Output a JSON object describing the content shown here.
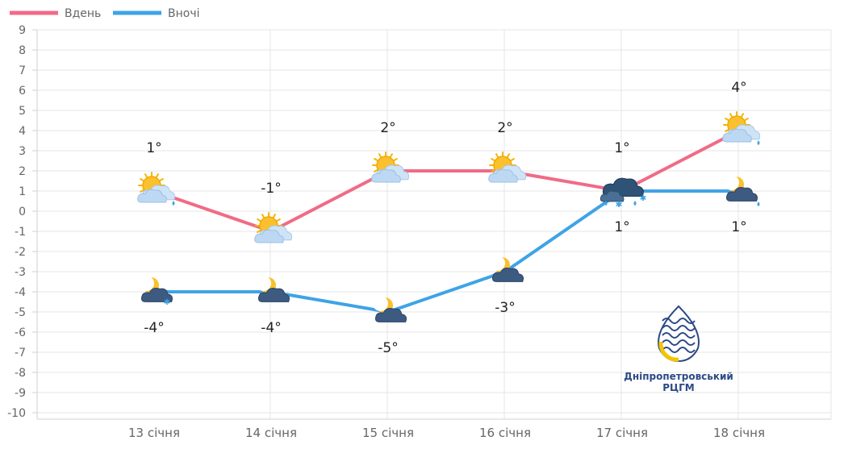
{
  "chart_data": {
    "type": "line",
    "categories": [
      "13 січня",
      "14 січня",
      "15 січня",
      "16 січня",
      "17 січня",
      "18 січня"
    ],
    "series": [
      {
        "name": "Вдень",
        "color": "#f06b86",
        "values": [
          1,
          -1,
          2,
          2,
          1,
          4
        ],
        "labels": [
          "1°",
          "-1°",
          "2°",
          "2°",
          "1°",
          "4°"
        ],
        "icons": [
          "sun-cloud-rain-icon",
          "sun-cloud-icon",
          "sun-cloud-icon",
          "sun-cloud-icon",
          "dark-cloud-rain-snow-icon",
          "sun-cloud-rain-icon"
        ]
      },
      {
        "name": "Вночі",
        "color": "#3fa3e6",
        "values": [
          -4,
          -4,
          -5,
          -3,
          1,
          1
        ],
        "labels": [
          "-4°",
          "-4°",
          "-5°",
          "-3°",
          "1°",
          "1°"
        ],
        "icons": [
          "moon-cloud-snow-icon",
          "moon-cloud-icon",
          "moon-cloud-icon",
          "moon-cloud-icon",
          "dark-cloud-rain-snow-icon",
          "moon-cloud-rain-icon"
        ]
      }
    ],
    "ylim": [
      -10,
      9
    ],
    "yticks": [
      "9",
      "8",
      "7",
      "6",
      "5",
      "4",
      "3",
      "2",
      "1",
      "0",
      "-1",
      "-2",
      "-3",
      "-4",
      "-5",
      "-6",
      "-7",
      "-8",
      "-9",
      "-10"
    ],
    "grid": true,
    "legend": "top-left"
  },
  "logo": {
    "line1": "Дніпропетровський",
    "line2": "РЦГМ",
    "icon": "drop-waves-logo-icon"
  }
}
